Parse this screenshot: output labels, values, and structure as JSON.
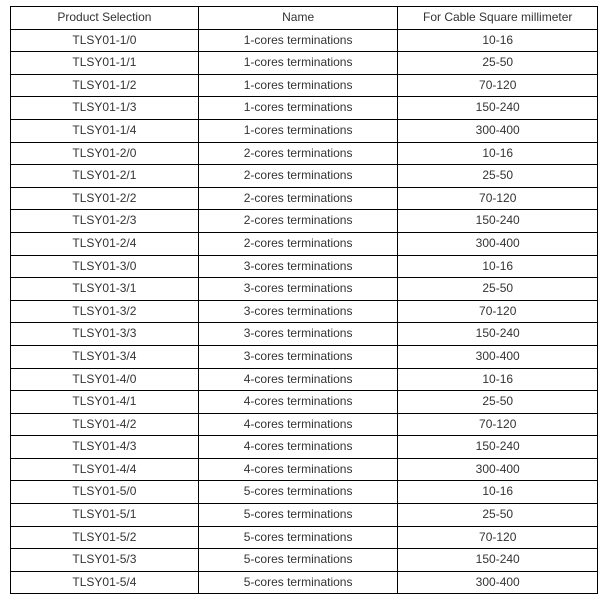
{
  "table": {
    "columns": [
      "Product Selection",
      "Name",
      "For Cable Square millimeter"
    ],
    "rows": [
      [
        "TLSY01-1/0",
        "1-cores terminations",
        "10-16"
      ],
      [
        "TLSY01-1/1",
        "1-cores terminations",
        "25-50"
      ],
      [
        "TLSY01-1/2",
        "1-cores terminations",
        "70-120"
      ],
      [
        "TLSY01-1/3",
        "1-cores terminations",
        "150-240"
      ],
      [
        "TLSY01-1/4",
        "1-cores terminations",
        "300-400"
      ],
      [
        "TLSY01-2/0",
        "2-cores terminations",
        "10-16"
      ],
      [
        "TLSY01-2/1",
        "2-cores terminations",
        "25-50"
      ],
      [
        "TLSY01-2/2",
        "2-cores terminations",
        "70-120"
      ],
      [
        "TLSY01-2/3",
        "2-cores terminations",
        "150-240"
      ],
      [
        "TLSY01-2/4",
        "2-cores terminations",
        "300-400"
      ],
      [
        "TLSY01-3/0",
        "3-cores terminations",
        "10-16"
      ],
      [
        "TLSY01-3/1",
        "3-cores terminations",
        "25-50"
      ],
      [
        "TLSY01-3/2",
        "3-cores terminations",
        "70-120"
      ],
      [
        "TLSY01-3/3",
        "3-cores terminations",
        "150-240"
      ],
      [
        "TLSY01-3/4",
        "3-cores terminations",
        "300-400"
      ],
      [
        "TLSY01-4/0",
        "4-cores terminations",
        "10-16"
      ],
      [
        "TLSY01-4/1",
        "4-cores terminations",
        "25-50"
      ],
      [
        "TLSY01-4/2",
        "4-cores terminations",
        "70-120"
      ],
      [
        "TLSY01-4/3",
        "4-cores terminations",
        "150-240"
      ],
      [
        "TLSY01-4/4",
        "4-cores terminations",
        "300-400"
      ],
      [
        "TLSY01-5/0",
        "5-cores terminations",
        "10-16"
      ],
      [
        "TLSY01-5/1",
        "5-cores terminations",
        "25-50"
      ],
      [
        "TLSY01-5/2",
        "5-cores terminations",
        "70-120"
      ],
      [
        "TLSY01-5/3",
        "5-cores terminations",
        "150-240"
      ],
      [
        "TLSY01-5/4",
        "5-cores terminations",
        "300-400"
      ]
    ],
    "border_color": "#000000",
    "text_color": "#333333",
    "background_color": "#ffffff",
    "font_size": 12
  }
}
